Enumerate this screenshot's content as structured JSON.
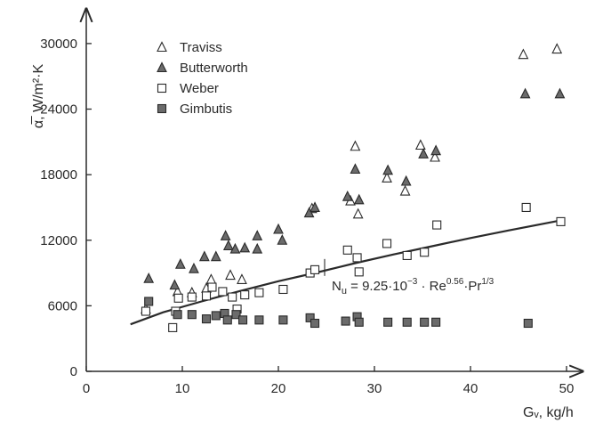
{
  "chart_data": {
    "type": "scatter",
    "title": "",
    "xlabel": "Gᵥ, kg/h",
    "ylabel": "α̅, W/m²·K",
    "xlim": [
      0,
      52
    ],
    "ylim": [
      0,
      32000
    ],
    "xticks": [
      0,
      10,
      20,
      30,
      40,
      50
    ],
    "yticks": [
      0,
      6000,
      12000,
      18000,
      24000,
      30000
    ],
    "grid": false,
    "legend_position": "top-left",
    "series": [
      {
        "name": "Traviss",
        "marker": "triangle-open",
        "points": [
          [
            6.2,
            5700
          ],
          [
            9.5,
            7300
          ],
          [
            11,
            7200
          ],
          [
            12.5,
            7600
          ],
          [
            13,
            8400
          ],
          [
            15,
            8800
          ],
          [
            16.2,
            8400
          ],
          [
            23.5,
            14900
          ],
          [
            28,
            20600
          ],
          [
            27.5,
            15600
          ],
          [
            28.3,
            14400
          ],
          [
            31.3,
            17700
          ],
          [
            33.2,
            16500
          ],
          [
            34.8,
            20700
          ],
          [
            36.3,
            19600
          ],
          [
            45.5,
            29000
          ],
          [
            49,
            29500
          ]
        ]
      },
      {
        "name": "Butterworth",
        "marker": "triangle-filled",
        "points": [
          [
            6.5,
            8500
          ],
          [
            9.2,
            7900
          ],
          [
            9.8,
            9800
          ],
          [
            11.2,
            9400
          ],
          [
            12.3,
            10500
          ],
          [
            13.5,
            10500
          ],
          [
            14.5,
            12400
          ],
          [
            14.8,
            11500
          ],
          [
            15.5,
            11200
          ],
          [
            16.5,
            11300
          ],
          [
            17.8,
            12400
          ],
          [
            17.8,
            11200
          ],
          [
            20,
            13000
          ],
          [
            20.4,
            12000
          ],
          [
            23.2,
            14500
          ],
          [
            23.8,
            15000
          ],
          [
            27.2,
            16000
          ],
          [
            28,
            18500
          ],
          [
            28.4,
            15700
          ],
          [
            31.4,
            18400
          ],
          [
            33.3,
            17400
          ],
          [
            35.1,
            19900
          ],
          [
            36.4,
            20200
          ],
          [
            45.7,
            25400
          ],
          [
            49.3,
            25400
          ]
        ]
      },
      {
        "name": "Weber",
        "marker": "square-open",
        "points": [
          [
            6.2,
            5500
          ],
          [
            9,
            4000
          ],
          [
            9.3,
            5500
          ],
          [
            9.6,
            6700
          ],
          [
            11,
            6800
          ],
          [
            12.5,
            6900
          ],
          [
            13.1,
            7700
          ],
          [
            14.2,
            7300
          ],
          [
            15.2,
            6800
          ],
          [
            15.7,
            5700
          ],
          [
            16.5,
            7000
          ],
          [
            18,
            7200
          ],
          [
            20.5,
            7500
          ],
          [
            23.3,
            9000
          ],
          [
            23.8,
            9300
          ],
          [
            27.2,
            11100
          ],
          [
            28.2,
            10400
          ],
          [
            28.4,
            9100
          ],
          [
            31.3,
            11700
          ],
          [
            33.4,
            10600
          ],
          [
            35.2,
            10900
          ],
          [
            36.5,
            13400
          ],
          [
            45.8,
            15000
          ],
          [
            49.4,
            13700
          ]
        ]
      },
      {
        "name": "Gimbutis",
        "marker": "square-filled",
        "points": [
          [
            6.5,
            6400
          ],
          [
            9.5,
            5200
          ],
          [
            11,
            5200
          ],
          [
            12.5,
            4800
          ],
          [
            13.5,
            5100
          ],
          [
            14.4,
            5300
          ],
          [
            14.7,
            4700
          ],
          [
            15.6,
            5200
          ],
          [
            16.3,
            4700
          ],
          [
            18,
            4700
          ],
          [
            20.5,
            4700
          ],
          [
            23.3,
            4900
          ],
          [
            23.8,
            4400
          ],
          [
            27,
            4600
          ],
          [
            28.2,
            5000
          ],
          [
            28.4,
            4500
          ],
          [
            31.4,
            4500
          ],
          [
            33.4,
            4500
          ],
          [
            35.2,
            4500
          ],
          [
            36.4,
            4500
          ],
          [
            46,
            4400
          ]
        ]
      }
    ],
    "fit_line": {
      "points": [
        [
          4.6,
          4300
        ],
        [
          8,
          5400
        ],
        [
          12,
          6400
        ],
        [
          16,
          7350
        ],
        [
          20,
          8250
        ],
        [
          24,
          9050
        ],
        [
          28,
          9900
        ],
        [
          32,
          10700
        ],
        [
          36,
          11450
        ],
        [
          40,
          12200
        ],
        [
          44,
          12900
        ],
        [
          49.3,
          13800
        ]
      ]
    },
    "annotation": {
      "text_parts": {
        "lhs": "N",
        "lhs_sub": "u",
        "mid": " = 9.25·10",
        "exp1": "−3",
        "mid2": " · Re",
        "exp2": "0.56",
        "mid3": "·Pr",
        "exp3": "1/3"
      },
      "anchor": [
        25,
        8000
      ]
    }
  }
}
